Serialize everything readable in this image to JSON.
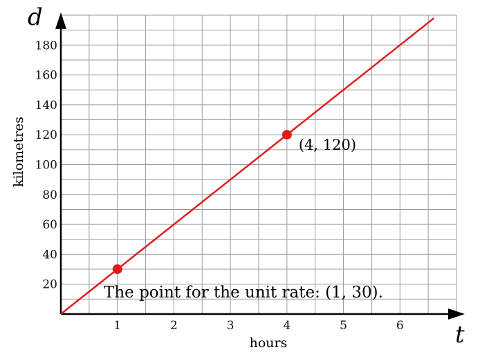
{
  "chart_data": {
    "type": "line",
    "x_var": "t",
    "y_var": "d",
    "xlabel": "hours",
    "ylabel": "kilometres",
    "xlim": [
      0,
      7
    ],
    "ylim": [
      0,
      200
    ],
    "x_grid_step": 0.5,
    "y_grid_step": 10,
    "grid": true,
    "x_ticks": [
      "1",
      "2",
      "3",
      "4",
      "5",
      "6"
    ],
    "y_ticks": [
      "20",
      "40",
      "60",
      "80",
      "100",
      "120",
      "140",
      "160",
      "180"
    ],
    "x_tick_values": [
      1,
      2,
      3,
      4,
      5,
      6
    ],
    "y_tick_values": [
      20,
      40,
      60,
      80,
      100,
      120,
      140,
      160,
      180
    ],
    "line": {
      "slope": 30,
      "intercept": 0,
      "x_range": [
        0,
        6.6
      ],
      "color": "#e01b1b"
    },
    "points": [
      {
        "x": 1,
        "y": 30
      },
      {
        "x": 4,
        "y": 120,
        "label": "(4, 120)"
      }
    ],
    "annotation": "The point for the unit rate: (1, 30)."
  }
}
